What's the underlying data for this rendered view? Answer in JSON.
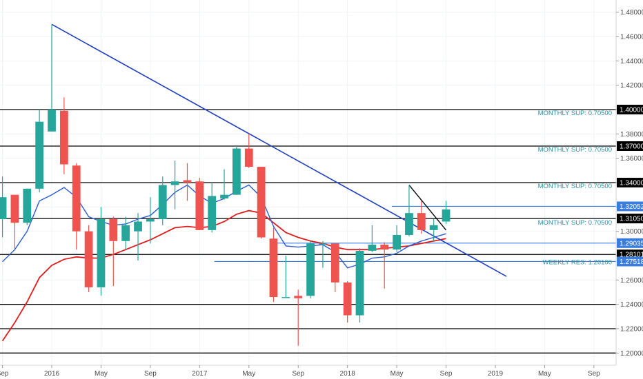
{
  "chart_data": {
    "type": "candlestick",
    "y_range": [
      1.19,
      1.49
    ],
    "y_ticks": [
      1.48,
      1.46,
      1.44,
      1.42,
      1.4,
      1.38,
      1.36,
      1.34,
      1.32,
      1.3,
      1.28,
      1.26,
      1.24,
      1.22,
      1.2
    ],
    "y_tick_labels": [
      "1.48000",
      "1.46000",
      "1.44000",
      "1.42000",
      "1.40000",
      "1.38000",
      "1.36000",
      "1.34000",
      "1.32000",
      "1.30000",
      "1.28000",
      "1.26000",
      "1.24000",
      "1.22000",
      "1.20000"
    ],
    "x_range": [
      -4.2,
      45.8
    ],
    "x_ticks": [
      {
        "label": "Sep",
        "x": -4
      },
      {
        "label": "2016",
        "x": 0
      },
      {
        "label": "May",
        "x": 4
      },
      {
        "label": "Sep",
        "x": 8
      },
      {
        "label": "2017",
        "x": 12
      },
      {
        "label": "May",
        "x": 16
      },
      {
        "label": "Sep",
        "x": 20
      },
      {
        "label": "2018",
        "x": 24
      },
      {
        "label": "May",
        "x": 28
      },
      {
        "label": "Sep",
        "x": 32
      },
      {
        "label": "2019",
        "x": 36
      },
      {
        "label": "May",
        "x": 40
      },
      {
        "label": "Sep",
        "x": 44
      }
    ],
    "candles": [
      {
        "x": -4,
        "o": 1.31,
        "h": 1.345,
        "l": 1.295,
        "c": 1.328
      },
      {
        "x": -3,
        "o": 1.33,
        "h": 1.33,
        "l": 1.285,
        "c": 1.307
      },
      {
        "x": -2,
        "o": 1.307,
        "h": 1.335,
        "l": 1.305,
        "c": 1.335
      },
      {
        "x": -1,
        "o": 1.335,
        "h": 1.4,
        "l": 1.332,
        "c": 1.39
      },
      {
        "x": 0,
        "o": 1.382,
        "h": 1.47,
        "l": 1.382,
        "c": 1.4
      },
      {
        "x": 1,
        "o": 1.399,
        "h": 1.41,
        "l": 1.347,
        "c": 1.355
      },
      {
        "x": 2,
        "o": 1.354,
        "h": 1.356,
        "l": 1.285,
        "c": 1.3
      },
      {
        "x": 3,
        "o": 1.3,
        "h": 1.305,
        "l": 1.25,
        "c": 1.254
      },
      {
        "x": 4,
        "o": 1.254,
        "h": 1.32,
        "l": 1.247,
        "c": 1.31
      },
      {
        "x": 5,
        "o": 1.31,
        "h": 1.312,
        "l": 1.255,
        "c": 1.292
      },
      {
        "x": 6,
        "o": 1.292,
        "h": 1.312,
        "l": 1.285,
        "c": 1.305
      },
      {
        "x": 7,
        "o": 1.3,
        "h": 1.315,
        "l": 1.276,
        "c": 1.308
      },
      {
        "x": 8,
        "o": 1.308,
        "h": 1.328,
        "l": 1.29,
        "c": 1.31
      },
      {
        "x": 9,
        "o": 1.31,
        "h": 1.345,
        "l": 1.305,
        "c": 1.338
      },
      {
        "x": 10,
        "o": 1.338,
        "h": 1.358,
        "l": 1.318,
        "c": 1.341
      },
      {
        "x": 11,
        "o": 1.342,
        "h": 1.356,
        "l": 1.325,
        "c": 1.34
      },
      {
        "x": 12,
        "o": 1.341,
        "h": 1.344,
        "l": 1.301,
        "c": 1.301
      },
      {
        "x": 13,
        "o": 1.301,
        "h": 1.34,
        "l": 1.299,
        "c": 1.329
      },
      {
        "x": 14,
        "o": 1.327,
        "h": 1.351,
        "l": 1.326,
        "c": 1.33
      },
      {
        "x": 15,
        "o": 1.33,
        "h": 1.37,
        "l": 1.33,
        "c": 1.368
      },
      {
        "x": 16,
        "o": 1.368,
        "h": 1.38,
        "l": 1.352,
        "c": 1.353
      },
      {
        "x": 17,
        "o": 1.353,
        "h": 1.353,
        "l": 1.294,
        "c": 1.295
      },
      {
        "x": 18,
        "o": 1.294,
        "h": 1.303,
        "l": 1.242,
        "c": 1.246
      },
      {
        "x": 19,
        "o": 1.246,
        "h": 1.28,
        "l": 1.246,
        "c": 1.246
      },
      {
        "x": 20,
        "o": 1.247,
        "h": 1.252,
        "l": 1.206,
        "c": 1.245
      },
      {
        "x": 21,
        "o": 1.247,
        "h": 1.292,
        "l": 1.245,
        "c": 1.29
      },
      {
        "x": 22,
        "o": 1.29,
        "h": 1.292,
        "l": 1.27,
        "c": 1.29
      },
      {
        "x": 23,
        "o": 1.29,
        "h": 1.29,
        "l": 1.25,
        "c": 1.258
      },
      {
        "x": 24,
        "o": 1.258,
        "h": 1.259,
        "l": 1.225,
        "c": 1.231
      },
      {
        "x": 25,
        "o": 1.231,
        "h": 1.286,
        "l": 1.225,
        "c": 1.284
      },
      {
        "x": 26,
        "o": 1.284,
        "h": 1.305,
        "l": 1.283,
        "c": 1.289
      },
      {
        "x": 27,
        "o": 1.289,
        "h": 1.291,
        "l": 1.253,
        "c": 1.285
      },
      {
        "x": 28,
        "o": 1.285,
        "h": 1.305,
        "l": 1.283,
        "c": 1.297
      },
      {
        "x": 29,
        "o": 1.297,
        "h": 1.338,
        "l": 1.296,
        "c": 1.315
      },
      {
        "x": 30,
        "o": 1.315,
        "h": 1.325,
        "l": 1.298,
        "c": 1.301
      },
      {
        "x": 31,
        "o": 1.301,
        "h": 1.31,
        "l": 1.292,
        "c": 1.305
      },
      {
        "x": 32,
        "o": 1.308,
        "h": 1.325,
        "l": 1.306,
        "c": 1.318
      }
    ],
    "ma_blue": [
      {
        "x": -4,
        "y": 1.275
      },
      {
        "x": -3,
        "y": 1.285
      },
      {
        "x": -2,
        "y": 1.3
      },
      {
        "x": -1,
        "y": 1.325
      },
      {
        "x": 0,
        "y": 1.33
      },
      {
        "x": 1,
        "y": 1.336
      },
      {
        "x": 2,
        "y": 1.328
      },
      {
        "x": 3,
        "y": 1.312
      },
      {
        "x": 4,
        "y": 1.308
      },
      {
        "x": 5,
        "y": 1.305
      },
      {
        "x": 6,
        "y": 1.306
      },
      {
        "x": 7,
        "y": 1.31
      },
      {
        "x": 8,
        "y": 1.313
      },
      {
        "x": 9,
        "y": 1.322
      },
      {
        "x": 10,
        "y": 1.332
      },
      {
        "x": 11,
        "y": 1.338
      },
      {
        "x": 12,
        "y": 1.329
      },
      {
        "x": 13,
        "y": 1.323
      },
      {
        "x": 14,
        "y": 1.327
      },
      {
        "x": 15,
        "y": 1.333
      },
      {
        "x": 16,
        "y": 1.338
      },
      {
        "x": 17,
        "y": 1.328
      },
      {
        "x": 18,
        "y": 1.304
      },
      {
        "x": 19,
        "y": 1.288
      },
      {
        "x": 20,
        "y": 1.287
      },
      {
        "x": 21,
        "y": 1.288
      },
      {
        "x": 22,
        "y": 1.289
      },
      {
        "x": 23,
        "y": 1.283
      },
      {
        "x": 24,
        "y": 1.27
      },
      {
        "x": 25,
        "y": 1.273
      },
      {
        "x": 26,
        "y": 1.278
      },
      {
        "x": 27,
        "y": 1.279
      },
      {
        "x": 28,
        "y": 1.282
      },
      {
        "x": 29,
        "y": 1.288
      },
      {
        "x": 30,
        "y": 1.292
      },
      {
        "x": 31,
        "y": 1.295
      },
      {
        "x": 32,
        "y": 1.298
      }
    ],
    "ma_red": [
      {
        "x": -4,
        "y": 1.21
      },
      {
        "x": -3,
        "y": 1.225
      },
      {
        "x": -2,
        "y": 1.242
      },
      {
        "x": -1,
        "y": 1.262
      },
      {
        "x": 0,
        "y": 1.272
      },
      {
        "x": 1,
        "y": 1.277
      },
      {
        "x": 2,
        "y": 1.279
      },
      {
        "x": 3,
        "y": 1.278
      },
      {
        "x": 4,
        "y": 1.278
      },
      {
        "x": 5,
        "y": 1.281
      },
      {
        "x": 6,
        "y": 1.285
      },
      {
        "x": 7,
        "y": 1.289
      },
      {
        "x": 8,
        "y": 1.293
      },
      {
        "x": 9,
        "y": 1.298
      },
      {
        "x": 10,
        "y": 1.303
      },
      {
        "x": 11,
        "y": 1.304
      },
      {
        "x": 12,
        "y": 1.303
      },
      {
        "x": 13,
        "y": 1.304
      },
      {
        "x": 14,
        "y": 1.308
      },
      {
        "x": 15,
        "y": 1.314
      },
      {
        "x": 16,
        "y": 1.317
      },
      {
        "x": 17,
        "y": 1.315
      },
      {
        "x": 18,
        "y": 1.307
      },
      {
        "x": 19,
        "y": 1.299
      },
      {
        "x": 20,
        "y": 1.295
      },
      {
        "x": 21,
        "y": 1.292
      },
      {
        "x": 22,
        "y": 1.29
      },
      {
        "x": 23,
        "y": 1.287
      },
      {
        "x": 24,
        "y": 1.285
      },
      {
        "x": 25,
        "y": 1.285
      },
      {
        "x": 26,
        "y": 1.285
      },
      {
        "x": 27,
        "y": 1.286
      },
      {
        "x": 28,
        "y": 1.287
      },
      {
        "x": 29,
        "y": 1.288
      },
      {
        "x": 30,
        "y": 1.29
      },
      {
        "x": 31,
        "y": 1.292
      },
      {
        "x": 32,
        "y": 1.294
      }
    ],
    "hlines_black": [
      {
        "y": 1.4,
        "x_end": 45.8,
        "tag": "1.40000"
      },
      {
        "y": 1.37,
        "x_end": 45.8,
        "tag": "1.37000"
      },
      {
        "y": 1.34,
        "x_end": 45.8,
        "tag": "1.34000"
      },
      {
        "y": 1.3105,
        "x_end": 45.8,
        "tag": "1.31050"
      },
      {
        "y": 1.281,
        "x_end": 45.8,
        "tag": "1.28101"
      },
      {
        "y": 1.24,
        "x_end": 45.8,
        "tag": ""
      },
      {
        "y": 1.22,
        "x_end": 45.8,
        "tag": ""
      },
      {
        "y": 1.2,
        "x_end": 45.8,
        "tag": ""
      }
    ],
    "hlines_blue": [
      {
        "y": 1.3205,
        "x_start": 27.6,
        "x_end": 45.8,
        "tag": "1.32052"
      },
      {
        "y": 1.2903,
        "x_start": 17.9,
        "x_end": 45.8,
        "tag": "1.29035"
      },
      {
        "y": 1.2752,
        "x_start": 13.2,
        "x_end": 45.8,
        "tag": "1.27518"
      }
    ],
    "trendline_main": {
      "x1": 0,
      "y1": 1.47,
      "x2": 36.9,
      "y2": 1.263
    },
    "trendline_small": {
      "x1": 29,
      "y1": 1.338,
      "x2": 32,
      "y2": 1.301
    },
    "annotations": [
      {
        "text": "MONTHLY SUP: 0.70500",
        "y": 1.4
      },
      {
        "text": "MONTHLY SUP: 0.70500",
        "y": 1.37
      },
      {
        "text": "MONTHLY SUP: 0.70500",
        "y": 1.34
      },
      {
        "text": "MONTHLY SUP: 0.70500",
        "y": 1.31
      },
      {
        "text": "WEEKLY RES: 1.28100",
        "y": 1.2775
      }
    ],
    "colors": {
      "up": "#26a69a",
      "down": "#ef5350",
      "trend": "#1f3fbf",
      "ma_blue": "#2a5bd1",
      "ma_red": "#e01a1a",
      "hline": "#000000",
      "hline_blue": "#3b7ddd",
      "annotation": "#2e8e9e"
    }
  }
}
